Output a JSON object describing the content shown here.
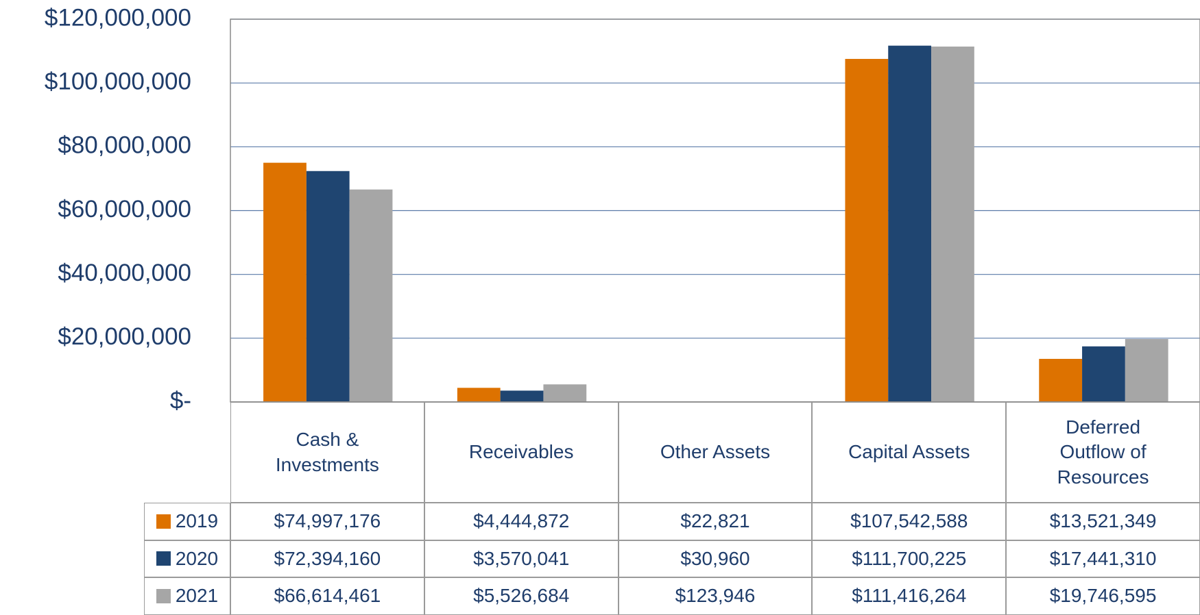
{
  "chart_data": {
    "type": "bar",
    "categories": [
      "Cash & Investments",
      "Receivables",
      "Other Assets",
      "Capital Assets",
      "Deferred Outflow of Resources"
    ],
    "series": [
      {
        "name": "2019",
        "color": "#dd7200",
        "values": [
          74997176,
          4444872,
          22821,
          107542588,
          13521349
        ],
        "value_labels": [
          "$74,997,176",
          "$4,444,872",
          "$22,821",
          "$107,542,588",
          "$13,521,349"
        ]
      },
      {
        "name": "2020",
        "color": "#1f4571",
        "values": [
          72394160,
          3570041,
          30960,
          111700225,
          17441310
        ],
        "value_labels": [
          "$72,394,160",
          "$3,570,041",
          "$30,960",
          "$111,700,225",
          "$17,441,310"
        ]
      },
      {
        "name": "2021",
        "color": "#a6a6a6",
        "values": [
          66614461,
          5526684,
          123946,
          111416264,
          19746595
        ],
        "value_labels": [
          "$66,614,461",
          "$5,526,684",
          "$123,946",
          "$111,416,264",
          "$19,746,595"
        ]
      }
    ],
    "ylim": [
      0,
      120000000
    ],
    "yticks": [
      {
        "value": 0,
        "label": "$-"
      },
      {
        "value": 20000000,
        "label": "$20,000,000"
      },
      {
        "value": 40000000,
        "label": "$40,000,000"
      },
      {
        "value": 60000000,
        "label": "$60,000,000"
      },
      {
        "value": 80000000,
        "label": "$80,000,000"
      },
      {
        "value": 100000000,
        "label": "$100,000,000"
      },
      {
        "value": 120000000,
        "label": "$120,000,000"
      }
    ],
    "grid": true
  }
}
